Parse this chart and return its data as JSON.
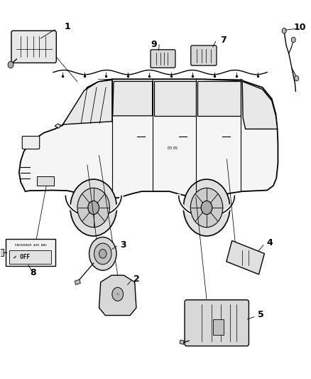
{
  "background_color": "#ffffff",
  "line_color": "#000000",
  "fig_width": 4.38,
  "fig_height": 5.33,
  "dpi": 100
}
